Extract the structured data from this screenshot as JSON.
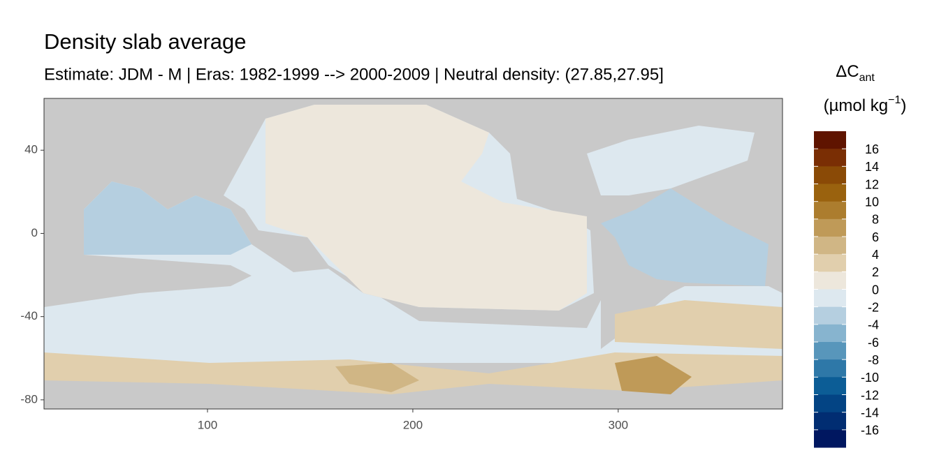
{
  "chart_data": {
    "type": "raster-map",
    "title": "Density slab average",
    "subtitle": "Estimate: JDM - M | Eras: 1982-1999 --> 2000-2009 | Neutral density: (27.85,27.95]",
    "xlim": [
      20.4,
      380
    ],
    "xticks": [
      100,
      200,
      300
    ],
    "ylim": [
      -84.4,
      64.9
    ],
    "yticks": [
      -80,
      -40,
      0,
      40
    ],
    "legend": {
      "title_main": "ΔC",
      "title_sub": "ant",
      "unit_pre": "(µmol kg",
      "unit_sup": "−1",
      "unit_post": ")",
      "limits": [
        -18,
        18
      ],
      "breaks": [
        16,
        14,
        12,
        10,
        8,
        6,
        4,
        2,
        0,
        -2,
        -4,
        -6,
        -8,
        -10,
        -12,
        -14,
        -16
      ],
      "colors": [
        "#5f1400",
        "#7a2e04",
        "#8a4a06",
        "#9a620e",
        "#ac7d2e",
        "#bf9a58",
        "#d0b685",
        "#e1cfad",
        "#ede7dc",
        "#dde8ef",
        "#b5cfe0",
        "#87b4cf",
        "#5896bb",
        "#2e78a8",
        "#0c5d96",
        "#034484",
        "#012d72",
        "#001760"
      ]
    }
  }
}
